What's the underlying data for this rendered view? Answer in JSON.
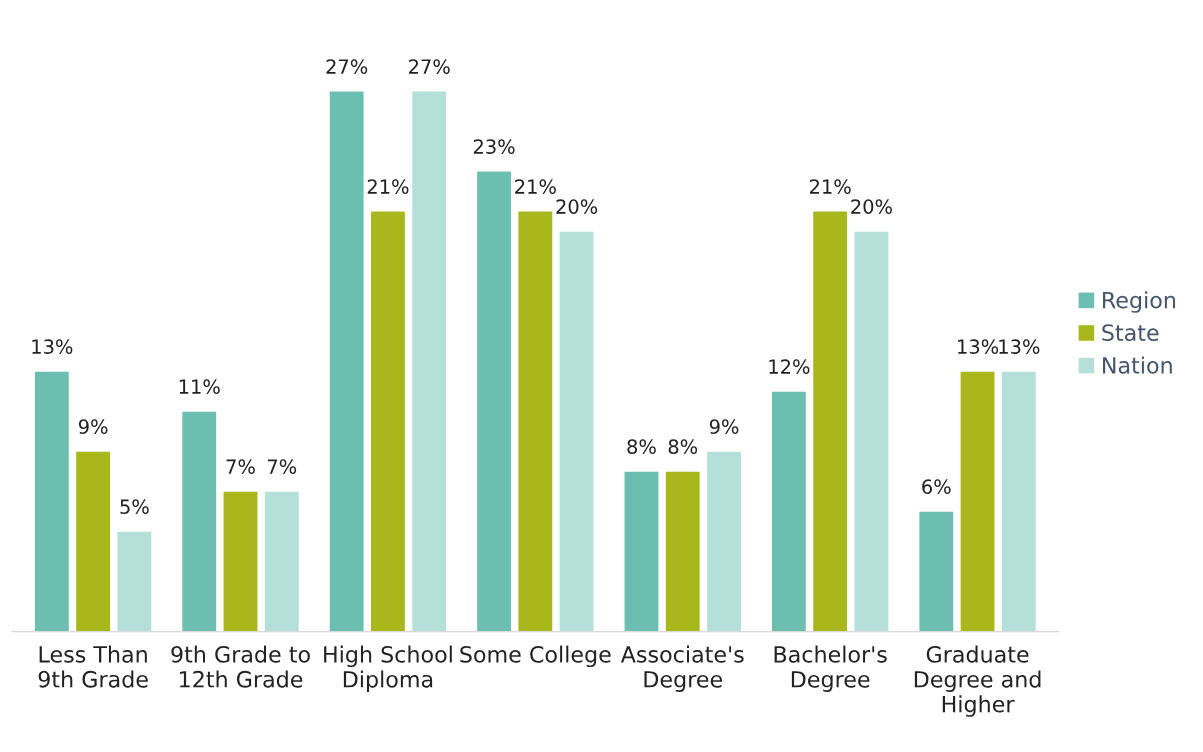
{
  "chart_data": {
    "type": "bar",
    "categories": [
      "Less Than 9th Grade",
      "9th Grade to 12th Grade",
      "High School Diploma",
      "Some College",
      "Associate's Degree",
      "Bachelor's Degree",
      "Graduate Degree and Higher"
    ],
    "series": [
      {
        "name": "Region",
        "color": "#6cbfb0",
        "values": [
          13,
          11,
          27,
          23,
          8,
          12,
          6
        ],
        "value_labels": [
          "13%",
          "11%",
          "27%",
          "23%",
          "8%",
          "12%",
          "6%"
        ]
      },
      {
        "name": "State",
        "color": "#a8b81c",
        "values": [
          9,
          7,
          21,
          21,
          8,
          21,
          13
        ],
        "value_labels": [
          "9%",
          "7%",
          "21%",
          "21%",
          "8%",
          "21%",
          "13%"
        ]
      },
      {
        "name": "Nation",
        "color": "#b5e0d9",
        "values": [
          5,
          7,
          27,
          20,
          9,
          20,
          13
        ],
        "value_labels": [
          "5%",
          "7%",
          "27%",
          "20%",
          "9%",
          "20%",
          "13%"
        ]
      }
    ],
    "legend": "right",
    "grid": false
  }
}
